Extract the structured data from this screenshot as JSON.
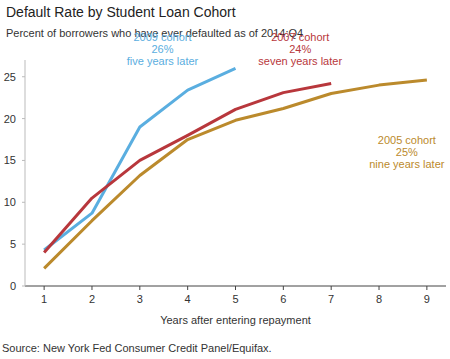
{
  "chart_data": {
    "type": "line",
    "title": "Default Rate by Student Loan Cohort",
    "subtitle": "Percent of borrowers who have ever defaulted as of 2014:Q4",
    "x_label": "Years after entering repayment",
    "source": "Source: New York Fed Consumer Credit Panel/Equifax.",
    "x": [
      1,
      2,
      3,
      4,
      5,
      6,
      7,
      8,
      9
    ],
    "series": [
      {
        "name": "2009 cohort",
        "color": "#5aaee0",
        "values": [
          4.3,
          8.7,
          19.0,
          23.4,
          26.0,
          null,
          null,
          null,
          null
        ]
      },
      {
        "name": "2007 cohort",
        "color": "#b8373c",
        "values": [
          4.0,
          10.5,
          15.0,
          18.0,
          21.1,
          23.1,
          24.2,
          null,
          null
        ]
      },
      {
        "name": "2005 cohort",
        "color": "#bb8a2c",
        "values": [
          2.1,
          7.8,
          13.2,
          17.5,
          19.8,
          21.2,
          23.0,
          24.0,
          24.6
        ]
      }
    ],
    "annotations": [
      [
        "2009 cohort",
        "26%",
        "five years later"
      ],
      [
        "2007 cohort",
        "24%",
        "seven years later"
      ],
      [
        "2005 cohort",
        "25%",
        "nine years later"
      ]
    ],
    "xlim": [
      0.6,
      9.4
    ],
    "xticks": [
      1,
      2,
      3,
      4,
      5,
      6,
      7,
      8,
      9
    ],
    "ylim": [
      0,
      27
    ],
    "yticks": [
      0,
      5,
      10,
      15,
      20,
      25
    ],
    "grid": false
  }
}
